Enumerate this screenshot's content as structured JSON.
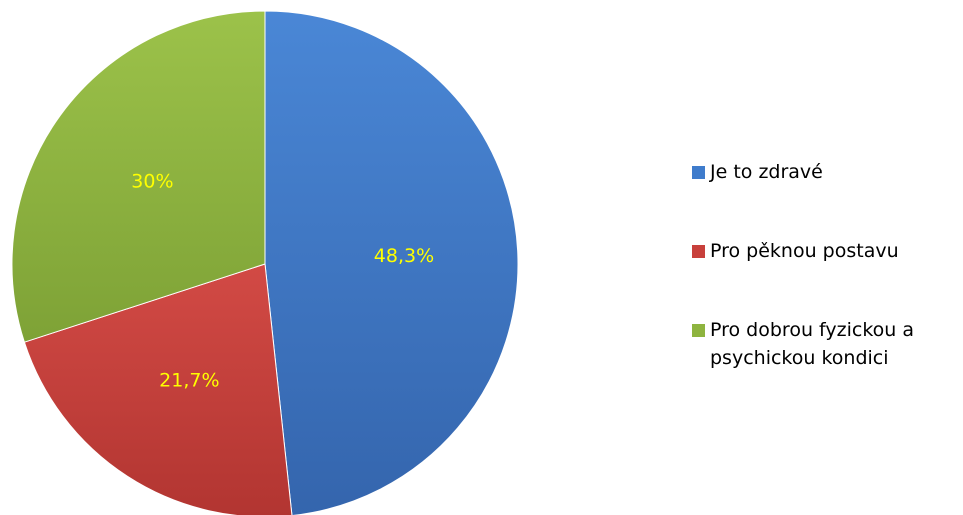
{
  "chart_data": {
    "type": "pie",
    "categories": [
      "Je to zdravé",
      "Pro pěknou postavu",
      "Pro dobrou fyzickou a psychickou kondici"
    ],
    "values": [
      48.3,
      21.7,
      30
    ],
    "data_labels": [
      "48,3%",
      "21,7%",
      "30%"
    ],
    "colors": [
      "#3f7ccc",
      "#c8403b",
      "#8eb43f"
    ],
    "start_angle_deg": 0,
    "direction": "clockwise",
    "legend_position": "right",
    "title": ""
  }
}
